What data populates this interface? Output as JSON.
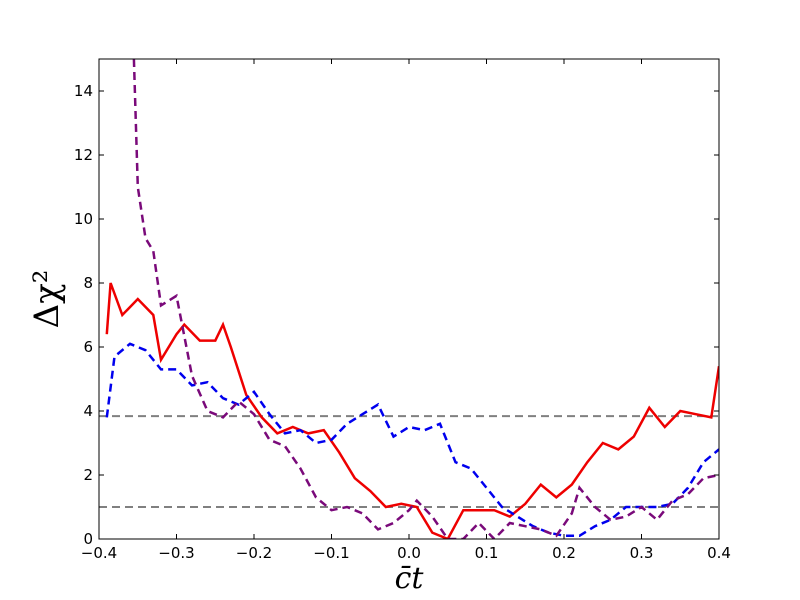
{
  "chart_data": {
    "type": "line",
    "xlabel": "c̄t",
    "ylabel": "Δχ²",
    "xlim": [
      -0.4,
      0.4
    ],
    "xticks": [
      {
        "value": -0.4,
        "label": "−0.4"
      },
      {
        "value": -0.3,
        "label": "−0.3"
      },
      {
        "value": -0.2,
        "label": "−0.2"
      },
      {
        "value": -0.1,
        "label": "−0.1"
      },
      {
        "value": 0,
        "label": "0.0"
      },
      0.1,
      0.2,
      0.3,
      0.4
    ],
    "ylim": [
      0,
      15
    ],
    "yticks": [
      0,
      2,
      4,
      6,
      8,
      10,
      12,
      14
    ],
    "hlines": [
      1,
      3.84
    ],
    "hline_color": "#808080",
    "series": [
      {
        "color": "#ee0000",
        "dash": false,
        "x": [
          -0.39,
          -0.385,
          -0.37,
          -0.35,
          -0.33,
          -0.32,
          -0.3,
          -0.29,
          -0.27,
          -0.25,
          -0.24,
          -0.23,
          -0.21,
          -0.19,
          -0.17,
          -0.15,
          -0.13,
          -0.11,
          -0.09,
          -0.07,
          -0.05,
          -0.03,
          -0.01,
          0.01,
          0.03,
          0.05,
          0.07,
          0.09,
          0.11,
          0.13,
          0.15,
          0.17,
          0.19,
          0.21,
          0.23,
          0.25,
          0.27,
          0.29,
          0.31,
          0.33,
          0.35,
          0.37,
          0.39,
          0.4
        ],
        "values": [
          6.4,
          8.0,
          7.0,
          7.5,
          7.0,
          5.6,
          6.4,
          6.7,
          6.2,
          6.2,
          6.7,
          6.0,
          4.5,
          3.8,
          3.3,
          3.5,
          3.3,
          3.4,
          2.7,
          1.9,
          1.5,
          1.0,
          1.1,
          1.0,
          0.2,
          0.0,
          0.9,
          0.9,
          0.9,
          0.7,
          1.1,
          1.7,
          1.3,
          1.7,
          2.4,
          3.0,
          2.8,
          3.2,
          4.1,
          3.5,
          4.0,
          3.9,
          3.8,
          5.4
        ]
      },
      {
        "color": "#0000ee",
        "dash": true,
        "x": [
          -0.39,
          -0.38,
          -0.36,
          -0.34,
          -0.32,
          -0.3,
          -0.28,
          -0.26,
          -0.24,
          -0.22,
          -0.2,
          -0.18,
          -0.16,
          -0.14,
          -0.12,
          -0.1,
          -0.08,
          -0.06,
          -0.04,
          -0.02,
          0.0,
          0.02,
          0.04,
          0.06,
          0.08,
          0.1,
          0.12,
          0.14,
          0.16,
          0.18,
          0.2,
          0.22,
          0.24,
          0.26,
          0.28,
          0.3,
          0.32,
          0.34,
          0.36,
          0.38,
          0.4
        ],
        "values": [
          3.8,
          5.7,
          6.1,
          5.9,
          5.3,
          5.3,
          4.8,
          4.9,
          4.4,
          4.2,
          4.6,
          3.9,
          3.3,
          3.4,
          3.0,
          3.1,
          3.6,
          3.9,
          4.2,
          3.2,
          3.5,
          3.4,
          3.6,
          2.4,
          2.2,
          1.6,
          1.0,
          0.7,
          0.4,
          0.2,
          0.1,
          0.1,
          0.4,
          0.6,
          1.0,
          1.0,
          1.0,
          1.1,
          1.6,
          2.4,
          2.8
        ]
      },
      {
        "color": "#7a0a7a",
        "dash": true,
        "x": [
          -0.355,
          -0.35,
          -0.34,
          -0.33,
          -0.32,
          -0.3,
          -0.28,
          -0.26,
          -0.24,
          -0.22,
          -0.2,
          -0.18,
          -0.16,
          -0.14,
          -0.12,
          -0.1,
          -0.08,
          -0.06,
          -0.04,
          -0.02,
          0.0,
          0.01,
          0.03,
          0.05,
          0.07,
          0.09,
          0.11,
          0.13,
          0.15,
          0.17,
          0.19,
          0.21,
          0.22,
          0.24,
          0.26,
          0.28,
          0.3,
          0.32,
          0.34,
          0.36,
          0.38,
          0.4
        ],
        "values": [
          15.0,
          11.0,
          9.4,
          9.0,
          7.3,
          7.6,
          5.1,
          4.0,
          3.8,
          4.3,
          3.9,
          3.1,
          2.9,
          2.2,
          1.3,
          0.9,
          1.0,
          0.8,
          0.3,
          0.5,
          0.9,
          1.2,
          0.7,
          0.0,
          0.0,
          0.5,
          0.0,
          0.5,
          0.4,
          0.3,
          0.1,
          0.8,
          1.6,
          1.0,
          0.6,
          0.7,
          1.0,
          0.6,
          1.2,
          1.4,
          1.9,
          2.0
        ]
      }
    ]
  }
}
